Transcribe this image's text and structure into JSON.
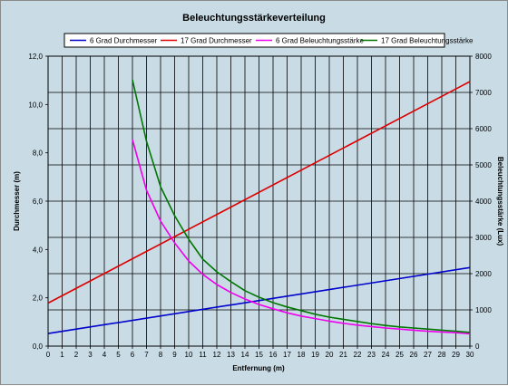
{
  "chart_data": {
    "type": "line",
    "title": "Beleuchtungsstärkeverteilung",
    "xlabel": "Entfernung  (m)",
    "ylabel_left": "Durchmesser  (m)",
    "ylabel_right": "Beleuchtungsstärke  (Lux)",
    "xlim": [
      0,
      30
    ],
    "ylim_left": [
      0,
      12
    ],
    "ylim_right": [
      0,
      8000
    ],
    "x_ticks": [
      "0",
      "1",
      "2",
      "3",
      "4",
      "5",
      "6",
      "7",
      "8",
      "9",
      "10",
      "11",
      "12",
      "13",
      "14",
      "15",
      "16",
      "17",
      "18",
      "19",
      "20",
      "21",
      "22",
      "23",
      "24",
      "25",
      "26",
      "27",
      "28",
      "29",
      "30"
    ],
    "y_left_ticks": [
      "0,0",
      "2,0",
      "4,0",
      "6,0",
      "8,0",
      "10,0",
      "12,0"
    ],
    "y_right_ticks": [
      "0",
      "1000",
      "2000",
      "3000",
      "4000",
      "5000",
      "6000",
      "7000",
      "8000"
    ],
    "grid": true,
    "legend_position": "top",
    "series": [
      {
        "name": "6 Grad Durchmesser",
        "axis": "left",
        "color": "#0000cc",
        "x": [
          0,
          30
        ],
        "values": [
          0.52,
          3.25
        ]
      },
      {
        "name": "17 Grad Durchmesser",
        "axis": "left",
        "color": "#dd0000",
        "x": [
          0,
          30
        ],
        "values": [
          1.78,
          10.95
        ]
      },
      {
        "name": "6 Grad Beleuchtungsstärke",
        "axis": "right",
        "color": "#ee00ee",
        "x": [
          6,
          7,
          8,
          9,
          10,
          11,
          12,
          13,
          14,
          15,
          16,
          17,
          18,
          19,
          20,
          21,
          22,
          23,
          24,
          25,
          26,
          27,
          28,
          29,
          30
        ],
        "values": [
          5700,
          4300,
          3450,
          2850,
          2350,
          1980,
          1700,
          1480,
          1300,
          1150,
          1030,
          920,
          830,
          760,
          690,
          630,
          580,
          540,
          500,
          470,
          440,
          410,
          390,
          370,
          340
        ]
      },
      {
        "name": "17 Grad Beleuchtungsstärke",
        "axis": "right",
        "color": "#007700",
        "x": [
          6,
          7,
          8,
          9,
          10,
          11,
          12,
          13,
          14,
          15,
          16,
          17,
          18,
          19,
          20,
          21,
          22,
          23,
          24,
          25,
          26,
          27,
          28,
          29,
          30
        ],
        "values": [
          7350,
          5650,
          4400,
          3600,
          2950,
          2400,
          2050,
          1780,
          1530,
          1350,
          1200,
          1080,
          980,
          880,
          800,
          740,
          680,
          620,
          570,
          530,
          500,
          470,
          440,
          410,
          380
        ]
      }
    ]
  }
}
